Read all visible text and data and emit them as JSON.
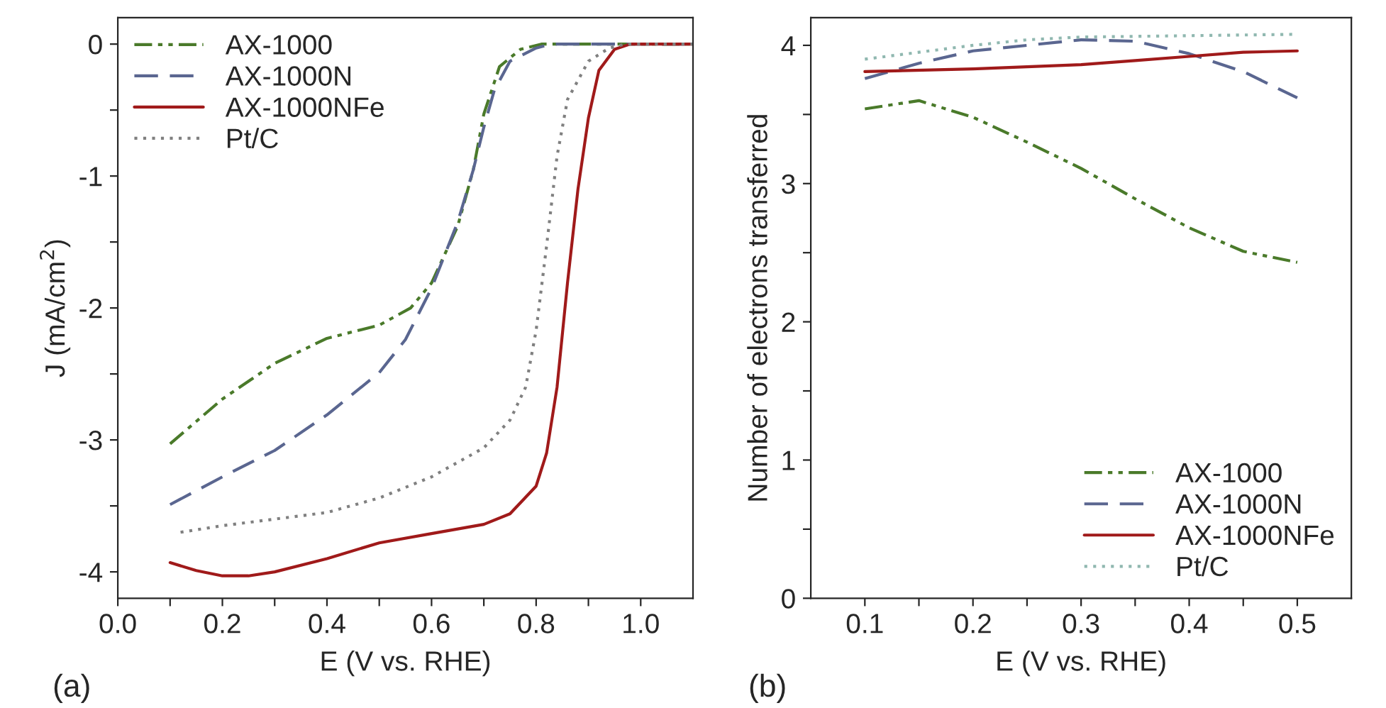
{
  "chart_data": [
    {
      "type": "line",
      "xlabel": "E (V vs. RHE)",
      "ylabel": "J (mA/cm$^{2}$)",
      "annotations": [
        "(a)"
      ],
      "legend": "top left",
      "grid": false,
      "xlim": [
        0.0,
        1.1
      ],
      "ylim": [
        -4.2,
        0.2
      ],
      "xticks": [
        {
          "value": 0.0,
          "label": "0.0"
        },
        {
          "value": 0.1,
          "label": null
        },
        {
          "value": 0.2,
          "label": "0.2"
        },
        {
          "value": 0.3,
          "label": null
        },
        {
          "value": 0.4,
          "label": "0.4"
        },
        {
          "value": 0.5,
          "label": null
        },
        {
          "value": 0.6,
          "label": "0.6"
        },
        {
          "value": 0.7,
          "label": null
        },
        {
          "value": 0.8,
          "label": "0.8"
        },
        {
          "value": 0.9,
          "label": null
        },
        {
          "value": 1.0,
          "label": "1.0"
        }
      ],
      "yticks": [
        -4,
        {
          "value": -3.5,
          "label": null
        },
        -3,
        {
          "value": -2.5,
          "label": null
        },
        -2,
        {
          "value": -1.5,
          "label": null
        },
        -1,
        {
          "value": -0.5,
          "label": null
        },
        0
      ],
      "series": [
        {
          "name": "AX-1000",
          "color": "#4a7a2a",
          "line_style": "dashdotdot",
          "x": [
            0.1,
            0.2,
            0.3,
            0.4,
            0.5,
            0.56,
            0.6,
            0.65,
            0.68,
            0.7,
            0.73,
            0.77,
            0.81,
            1.1
          ],
          "values": [
            -3.03,
            -2.69,
            -2.42,
            -2.23,
            -2.13,
            -2.0,
            -1.81,
            -1.38,
            -0.95,
            -0.53,
            -0.17,
            -0.04,
            0,
            0
          ]
        },
        {
          "name": "AX-1000N",
          "color": "#5a6690",
          "line_style": "dashed",
          "x": [
            0.1,
            0.2,
            0.3,
            0.4,
            0.5,
            0.55,
            0.6,
            0.65,
            0.68,
            0.7,
            0.72,
            0.75,
            0.8,
            0.83,
            1.1
          ],
          "values": [
            -3.49,
            -3.28,
            -3.08,
            -2.81,
            -2.49,
            -2.24,
            -1.85,
            -1.35,
            -0.95,
            -0.63,
            -0.35,
            -0.13,
            -0.03,
            0,
            0
          ]
        },
        {
          "name": "AX-1000NFe",
          "color": "#a01a1a",
          "line_style": "solid",
          "x": [
            0.1,
            0.15,
            0.2,
            0.25,
            0.3,
            0.4,
            0.5,
            0.6,
            0.7,
            0.75,
            0.8,
            0.82,
            0.84,
            0.86,
            0.88,
            0.9,
            0.92,
            0.95,
            0.98,
            1.1
          ],
          "values": [
            -3.93,
            -3.99,
            -4.03,
            -4.03,
            -4.0,
            -3.9,
            -3.78,
            -3.71,
            -3.64,
            -3.56,
            -3.35,
            -3.1,
            -2.6,
            -1.81,
            -1.1,
            -0.56,
            -0.2,
            -0.04,
            0,
            0
          ]
        },
        {
          "name": "Pt/C",
          "color": "#808080",
          "line_style": "dotted",
          "x": [
            0.12,
            0.2,
            0.3,
            0.4,
            0.5,
            0.6,
            0.7,
            0.75,
            0.78,
            0.8,
            0.82,
            0.84,
            0.86,
            0.9,
            0.94,
            0.97,
            1.1
          ],
          "values": [
            -3.7,
            -3.65,
            -3.6,
            -3.55,
            -3.44,
            -3.28,
            -3.06,
            -2.85,
            -2.6,
            -2.17,
            -1.53,
            -0.85,
            -0.42,
            -0.13,
            -0.03,
            0,
            0
          ]
        }
      ]
    },
    {
      "type": "line",
      "xlabel": "E (V vs. RHE)",
      "ylabel": "Number of electrons transferred",
      "annotations": [
        "(b)"
      ],
      "legend": "bottom right",
      "grid": false,
      "xlim": [
        0.05,
        0.55
      ],
      "ylim": [
        0,
        4.2
      ],
      "xticks": [
        0.1,
        {
          "value": 0.15,
          "label": null
        },
        0.2,
        {
          "value": 0.25,
          "label": null
        },
        0.3,
        {
          "value": 0.35,
          "label": null
        },
        0.4,
        {
          "value": 0.45,
          "label": null
        },
        0.5
      ],
      "yticks": [
        0,
        {
          "value": 0.5,
          "label": null
        },
        1,
        {
          "value": 1.5,
          "label": null
        },
        2,
        {
          "value": 2.5,
          "label": null
        },
        3,
        {
          "value": 3.5,
          "label": null
        },
        4
      ],
      "series": [
        {
          "name": "AX-1000",
          "color": "#4a7a2a",
          "line_style": "dashdotdot",
          "x": [
            0.1,
            0.15,
            0.2,
            0.25,
            0.3,
            0.35,
            0.4,
            0.45,
            0.5
          ],
          "values": [
            3.54,
            3.6,
            3.48,
            3.3,
            3.11,
            2.89,
            2.68,
            2.51,
            2.43
          ]
        },
        {
          "name": "AX-1000N",
          "color": "#5a6690",
          "line_style": "dashed",
          "x": [
            0.1,
            0.15,
            0.2,
            0.25,
            0.3,
            0.35,
            0.4,
            0.45,
            0.5
          ],
          "values": [
            3.76,
            3.87,
            3.96,
            4.0,
            4.04,
            4.03,
            3.94,
            3.81,
            3.62
          ]
        },
        {
          "name": "AX-1000NFe",
          "color": "#a01a1a",
          "line_style": "solid",
          "x": [
            0.1,
            0.2,
            0.3,
            0.35,
            0.4,
            0.45,
            0.5
          ],
          "values": [
            3.81,
            3.83,
            3.86,
            3.89,
            3.92,
            3.95,
            3.96
          ]
        },
        {
          "name": "Pt/C",
          "color": "#90b8b0",
          "line_style": "dotted",
          "x": [
            0.1,
            0.15,
            0.2,
            0.25,
            0.3,
            0.4,
            0.5
          ],
          "values": [
            3.9,
            3.95,
            4.0,
            4.04,
            4.06,
            4.07,
            4.08
          ]
        }
      ]
    }
  ]
}
